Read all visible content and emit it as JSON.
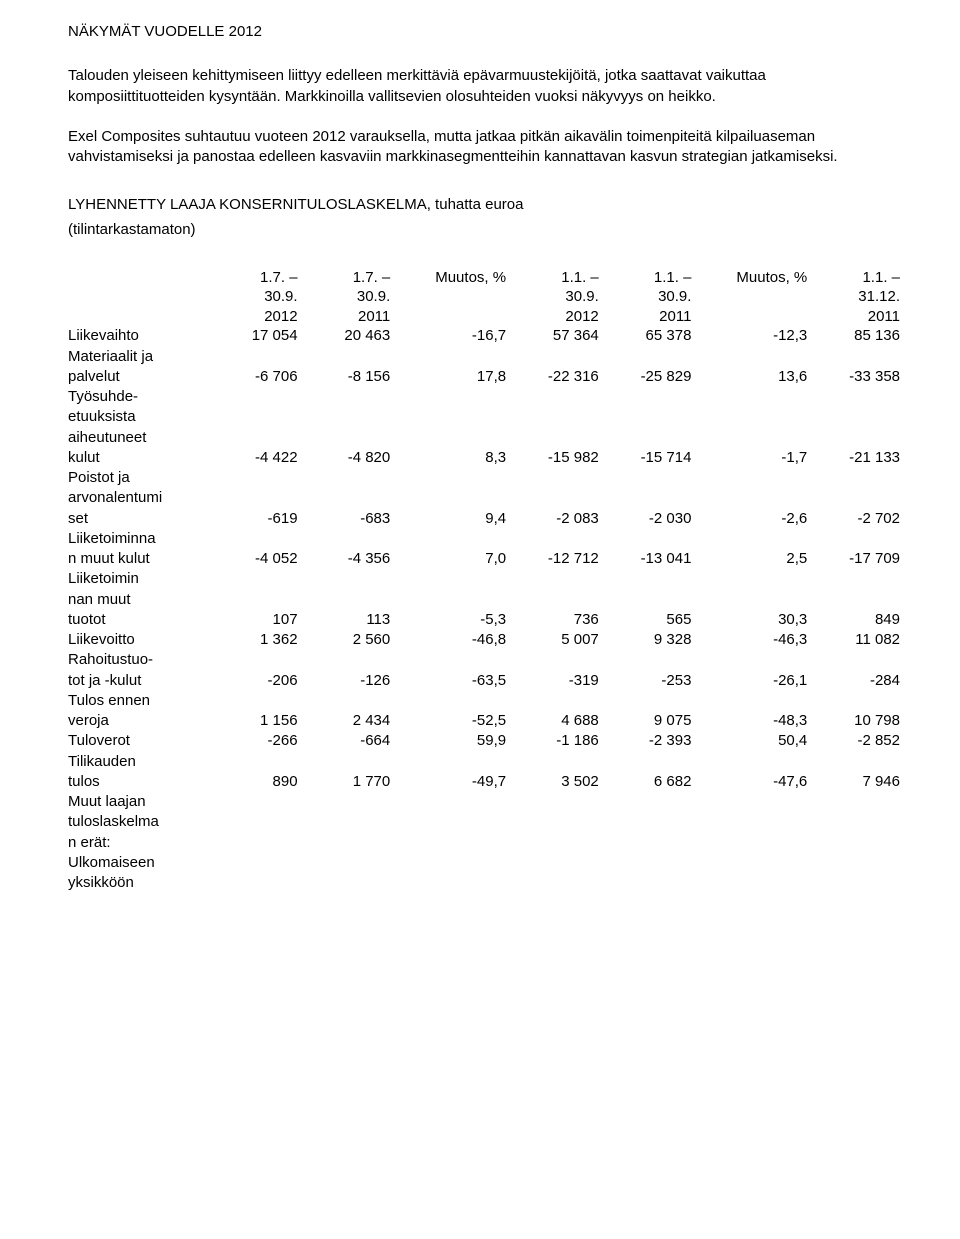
{
  "heading": "NÄKYMÄT VUODELLE 2012",
  "para1": "Talouden yleiseen kehittymiseen liittyy edelleen merkittäviä epävarmuustekijöitä, jotka saattavat vaikuttaa komposiittituotteiden kysyntään. Markkinoilla vallitsevien olosuhteiden vuoksi näkyvyys on heikko.",
  "para2": "Exel Composites suhtautuu vuoteen 2012 varauksella, mutta jatkaa pitkän aikavälin toimenpiteitä kilpailuaseman vahvistamiseksi ja panostaa edelleen kasvaviin markkinasegmentteihin kannattavan kasvun strategian jatkamiseksi.",
  "sectionTitle": "LYHENNETTY LAAJA KONSERNITULOSLASKELMA, tuhatta euroa",
  "sectionSub": "(tilintarkastamaton)",
  "headers": {
    "c1a": "1.7. –",
    "c1b": "30.9.",
    "c1c": "2012",
    "c2a": "1.7. –",
    "c2b": "30.9.",
    "c2c": "2011",
    "c3a": "Muutos, %",
    "c4a": "1.1. –",
    "c4b": "30.9.",
    "c4c": "2012",
    "c5a": "1.1. –",
    "c5b": "30.9.",
    "c5c": "2011",
    "c6a": "Muutos, %",
    "c7a": "1.1. –",
    "c7b": "31.12.",
    "c7c": "2011"
  },
  "rows": {
    "liikevaihto": {
      "label": "Liikevaihto",
      "v": [
        "17 054",
        "20 463",
        "-16,7",
        "57 364",
        "65 378",
        "-12,3",
        "85 136"
      ]
    },
    "materiaalit": {
      "l1": "Materiaalit ja",
      "l2": "palvelut",
      "v": [
        "-6 706",
        "-8 156",
        "17,8",
        "-22 316",
        "-25 829",
        "13,6",
        "-33 358"
      ]
    },
    "tyosuhde": {
      "l1": "Työsuhde-",
      "l2": "etuuksista",
      "l3": "aiheutuneet",
      "l4": "kulut",
      "v": [
        "-4 422",
        "-4 820",
        "8,3",
        "-15 982",
        "-15 714",
        "-1,7",
        "-21 133"
      ]
    },
    "poistot": {
      "l1": "Poistot ja",
      "l2": "arvonalentumi",
      "l3": "set",
      "v": [
        "-619",
        "-683",
        "9,4",
        "-2 083",
        "-2 030",
        "-2,6",
        "-2 702"
      ]
    },
    "liiketoimMuutKulut": {
      "l1": "Liiketoiminna",
      "l2": "n muut kulut",
      "v": [
        "-4 052",
        "-4 356",
        "7,0",
        "-12 712",
        "-13 041",
        "2,5",
        "-17 709"
      ]
    },
    "liiketoimMuutTuotot": {
      "l1": "Liiketoimin",
      "l2": "nan muut",
      "l3": "tuotot",
      "v": [
        "107",
        "113",
        "-5,3",
        "736",
        "565",
        "30,3",
        "849"
      ]
    },
    "liikevoitto": {
      "label": "Liikevoitto",
      "v": [
        "1 362",
        "2 560",
        "-46,8",
        "5 007",
        "9 328",
        "-46,3",
        "11 082"
      ]
    },
    "rahoitus": {
      "l1": "Rahoitustuo-",
      "l2": "tot ja -kulut",
      "v": [
        "-206",
        "-126",
        "-63,5",
        "-319",
        "-253",
        "-26,1",
        "-284"
      ]
    },
    "tulosEnnen": {
      "l1": "Tulos ennen",
      "l2": "veroja",
      "v": [
        "1 156",
        "2 434",
        "-52,5",
        "4 688",
        "9 075",
        "-48,3",
        "10 798"
      ]
    },
    "tuloverot": {
      "label": "Tuloverot",
      "v": [
        "-266",
        "-664",
        "59,9",
        "-1 186",
        "-2 393",
        "50,4",
        "-2 852"
      ]
    },
    "tilikauden": {
      "l1": "Tilikauden",
      "l2": "tulos",
      "v": [
        "890",
        "1 770",
        "-49,7",
        "3 502",
        "6 682",
        "-47,6",
        "7 946"
      ]
    },
    "muutLaajan": {
      "l1": "Muut laajan",
      "l2": "tuloslaskelma",
      "l3": "n erät:"
    },
    "ulkomaiseen": {
      "l1": "Ulkomaiseen",
      "l2": "yksikköön"
    }
  }
}
